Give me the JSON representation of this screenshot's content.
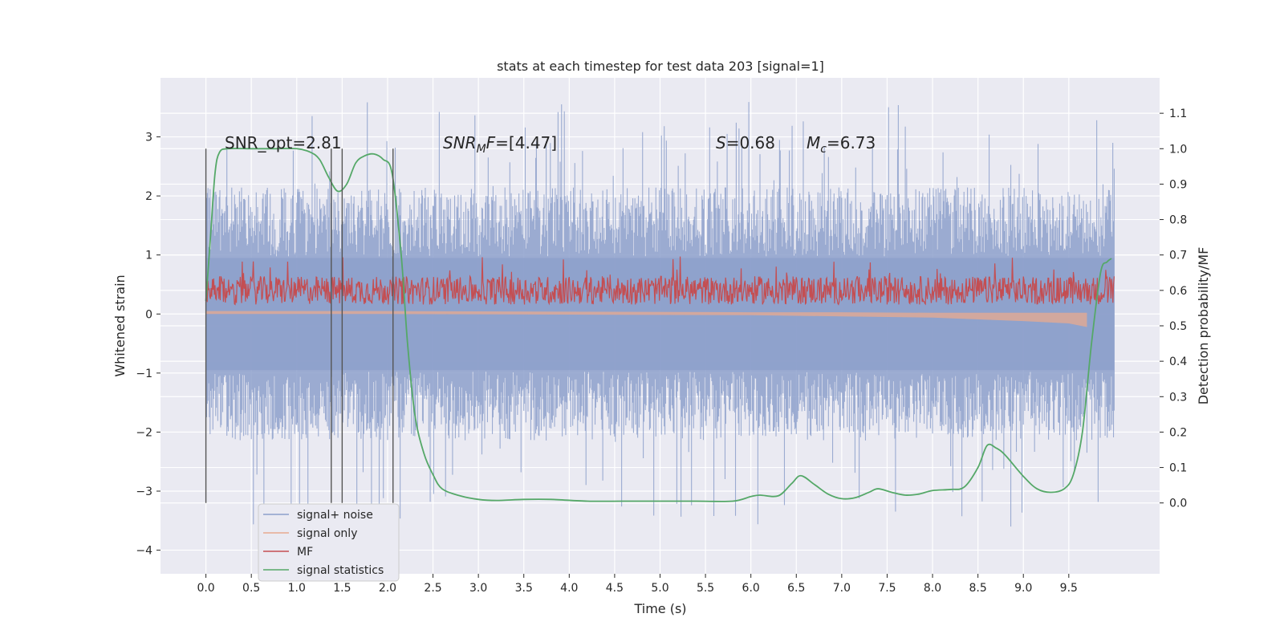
{
  "chart_data": {
    "type": "line",
    "title": "stats at each timestep for test data 203 [signal=1]",
    "xlabel": "Time (s)",
    "ylabel": "Whitened strain",
    "ylabel_right": "Detection probability/MF",
    "xlim": [
      -0.5,
      10.5
    ],
    "ylim": [
      -4.4,
      4.0
    ],
    "ylim_right": [
      -0.2,
      1.2
    ],
    "x_ticks": [
      "0.0",
      "0.5",
      "1.0",
      "1.5",
      "2.0",
      "2.5",
      "3.0",
      "3.5",
      "4.0",
      "4.5",
      "5.0",
      "5.5",
      "6.0",
      "6.5",
      "7.0",
      "7.5",
      "8.0",
      "8.5",
      "9.0",
      "9.5"
    ],
    "y_ticks": [
      "3",
      "2",
      "1",
      "0",
      "−1",
      "−2",
      "−3",
      "−4"
    ],
    "y_ticks_right": [
      "1.1",
      "1.0",
      "0.9",
      "0.8",
      "0.7",
      "0.6",
      "0.5",
      "0.4",
      "0.3",
      "0.2",
      "0.1",
      "0.0"
    ],
    "grid": true,
    "legend": {
      "placement": "bottom-left",
      "entries": [
        {
          "label": "signal+ noise",
          "color": "#8da0cb"
        },
        {
          "label": "signal only",
          "color": "#e8a98f"
        },
        {
          "label": "MF",
          "color": "#c44e52"
        },
        {
          "label": "signal statistics",
          "color": "#55a868"
        }
      ]
    },
    "annotations": {
      "snr_opt": "SNR_opt=2.81",
      "snr_mf_base": "SNR",
      "snr_mf_sub": "M",
      "snr_mf_rest": "F",
      "snr_mf_value": "=[4.47]",
      "s_symbol": "S",
      "s_value": "=0.68",
      "mc_symbol": "M",
      "mc_sub": "c",
      "mc_value": "=6.73"
    },
    "vertical_lines": {
      "x": [
        0.0,
        1.38,
        1.5,
        2.06
      ],
      "ymin": -3.2,
      "ymax": 2.8
    },
    "series": [
      {
        "name": "signal+ noise",
        "kind": "noise",
        "x_range": [
          0.0,
          10.0
        ],
        "amplitude_typical": 1.3,
        "amplitude_peak": 3.6,
        "color": "#8da0cb"
      },
      {
        "name": "signal only",
        "kind": "envelope",
        "x": [
          0.0,
          2.0,
          4.0,
          6.0,
          7.0,
          8.0,
          9.0,
          9.5,
          9.7
        ],
        "upper": [
          0.05,
          0.05,
          0.04,
          0.03,
          0.03,
          0.02,
          0.02,
          0.02,
          0.02
        ],
        "lower": [
          0.0,
          0.0,
          -0.01,
          -0.02,
          -0.04,
          -0.06,
          -0.12,
          -0.16,
          -0.22
        ],
        "color": "#e8a98f"
      },
      {
        "name": "MF",
        "kind": "mf",
        "x_range": [
          0.0,
          10.0
        ],
        "baseline_right": 0.6,
        "spread_right": 0.08,
        "peak_right": 0.7,
        "color": "#c44e52"
      },
      {
        "name": "signal statistics",
        "axis": "right",
        "x": [
          0.0,
          0.05,
          0.1,
          0.15,
          0.25,
          0.5,
          0.75,
          1.0,
          1.15,
          1.25,
          1.35,
          1.45,
          1.55,
          1.65,
          1.75,
          1.85,
          1.95,
          2.05,
          2.15,
          2.22,
          2.3,
          2.4,
          2.5,
          2.6,
          2.8,
          3.0,
          3.2,
          3.5,
          3.8,
          4.2,
          4.6,
          5.0,
          5.4,
          5.8,
          6.0,
          6.1,
          6.3,
          6.45,
          6.55,
          6.7,
          6.85,
          7.0,
          7.15,
          7.3,
          7.4,
          7.55,
          7.7,
          7.85,
          8.0,
          8.2,
          8.35,
          8.5,
          8.6,
          8.7,
          8.8,
          9.0,
          9.15,
          9.3,
          9.45,
          9.55,
          9.65,
          9.75,
          9.85,
          9.92,
          9.97
        ],
        "y": [
          0.57,
          0.75,
          0.93,
          0.99,
          1.0,
          1.0,
          1.0,
          1.0,
          0.99,
          0.97,
          0.92,
          0.88,
          0.9,
          0.96,
          0.98,
          0.985,
          0.97,
          0.93,
          0.7,
          0.45,
          0.25,
          0.14,
          0.08,
          0.04,
          0.02,
          0.01,
          0.007,
          0.01,
          0.01,
          0.005,
          0.005,
          0.005,
          0.005,
          0.005,
          0.018,
          0.022,
          0.02,
          0.055,
          0.077,
          0.052,
          0.025,
          0.012,
          0.015,
          0.03,
          0.04,
          0.03,
          0.022,
          0.025,
          0.035,
          0.038,
          0.045,
          0.1,
          0.162,
          0.155,
          0.135,
          0.075,
          0.04,
          0.03,
          0.04,
          0.08,
          0.2,
          0.45,
          0.65,
          0.68,
          0.69
        ],
        "color": "#55a868"
      }
    ]
  }
}
